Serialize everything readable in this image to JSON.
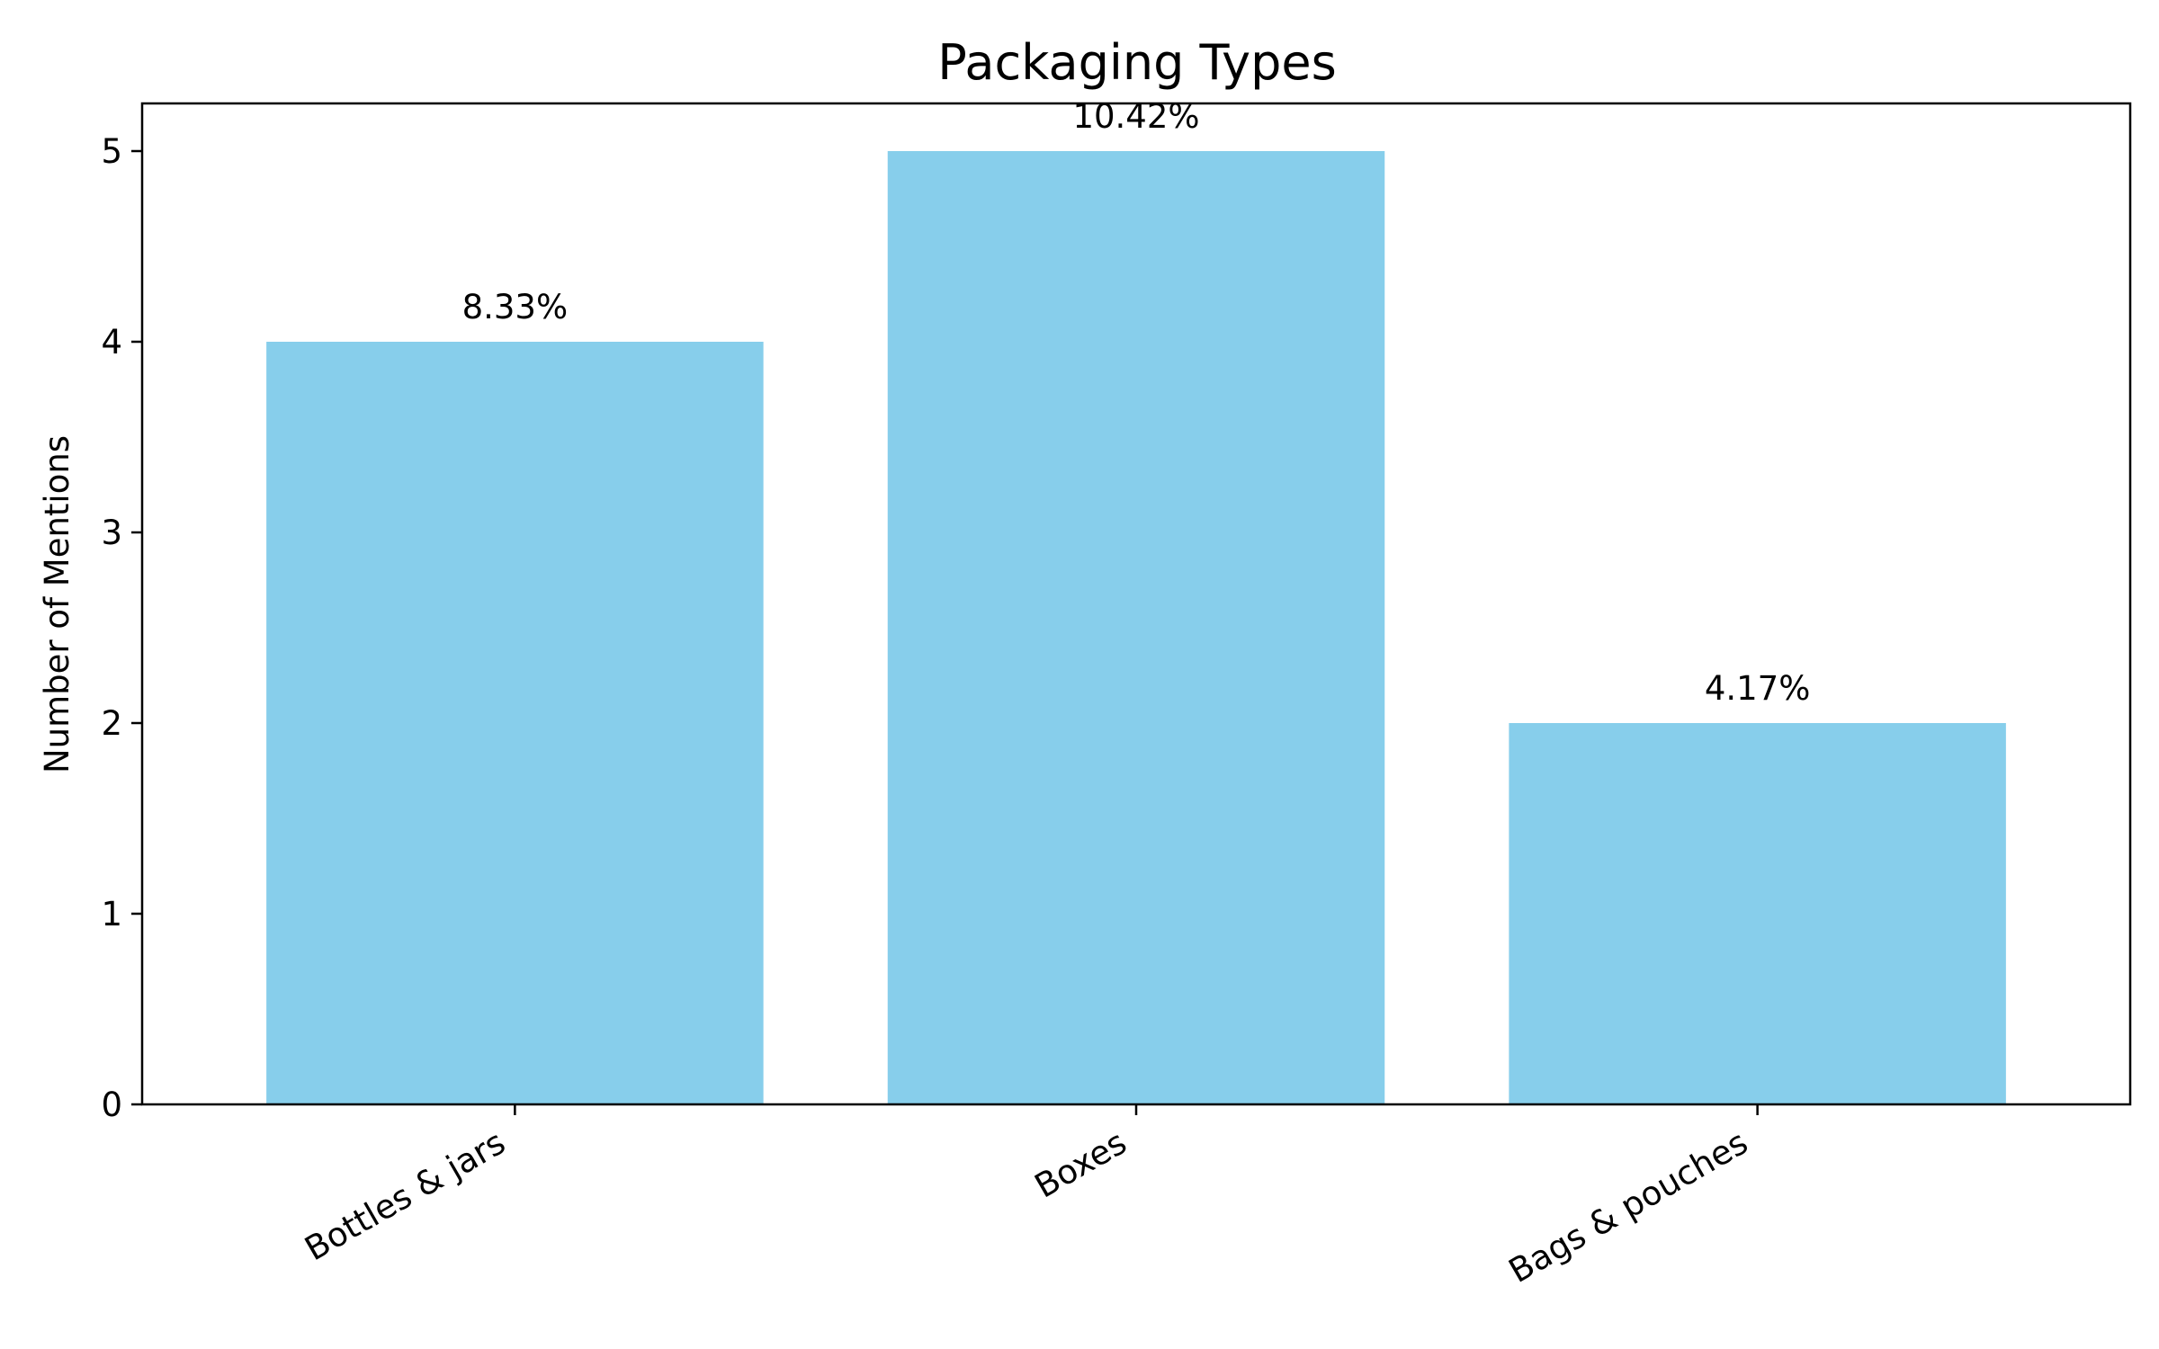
{
  "chart_data": {
    "type": "bar",
    "title": "Packaging Types",
    "xlabel": "",
    "ylabel": "Number of Mentions",
    "categories": [
      "Bottles & jars",
      "Boxes",
      "Bags & pouches"
    ],
    "values": [
      4,
      5,
      2
    ],
    "data_labels": [
      "8.33%",
      "10.42%",
      "4.17%"
    ],
    "yticks": [
      0,
      1,
      2,
      3,
      4,
      5
    ],
    "ylim": [
      0,
      5.25
    ],
    "bar_color": "#87CEEB",
    "grid": false,
    "legend": "none"
  }
}
